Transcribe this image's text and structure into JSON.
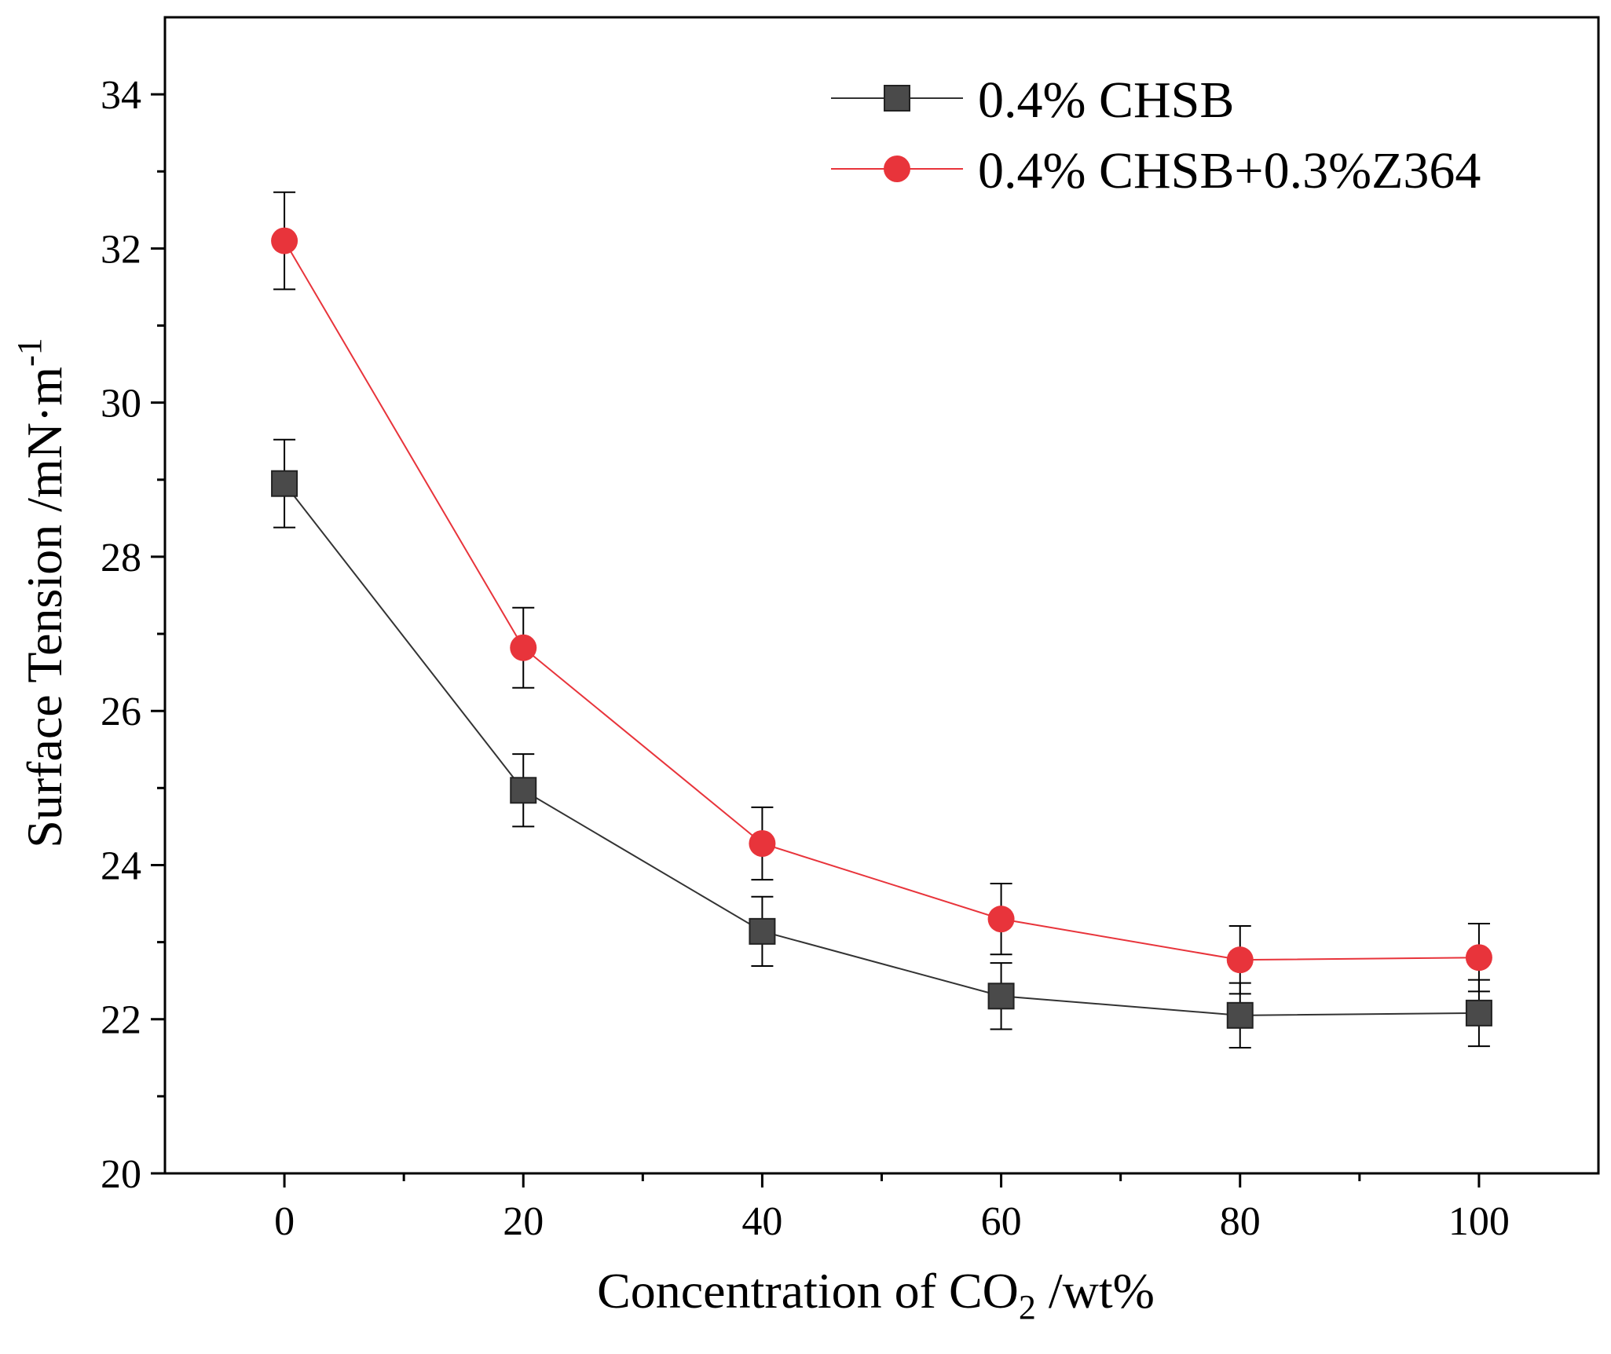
{
  "chart_data": {
    "type": "line",
    "xlabel_main": "Concentration of CO",
    "xlabel_sub": "2",
    "xlabel_rest": " /wt%",
    "ylabel_main": "Surface Tension /mN·m",
    "ylabel_sup": "-1",
    "xlim": [
      -10,
      110
    ],
    "ylim": [
      20,
      35
    ],
    "x_ticks": [
      0,
      20,
      40,
      60,
      80,
      100
    ],
    "x_minor_ticks": [
      10,
      30,
      50,
      70,
      90
    ],
    "y_ticks": [
      20,
      22,
      24,
      26,
      28,
      30,
      32,
      34
    ],
    "y_minor_ticks": [
      21,
      23,
      25,
      27,
      29,
      31,
      33
    ],
    "x_tick_labels": [
      "0",
      "20",
      "40",
      "60",
      "80",
      "100"
    ],
    "y_tick_labels": [
      "20",
      "22",
      "24",
      "26",
      "28",
      "30",
      "32",
      "34"
    ],
    "legend_position": "top-right",
    "series": [
      {
        "name": "0.4% CHSB",
        "marker": "square",
        "color": "#4a4a4a",
        "line_color": "#333333",
        "x": [
          0,
          20,
          40,
          60,
          80,
          100
        ],
        "values": [
          28.95,
          24.97,
          23.14,
          22.3,
          22.05,
          22.08
        ],
        "errors": [
          0.57,
          0.47,
          0.45,
          0.43,
          0.42,
          0.43
        ]
      },
      {
        "name": "0.4% CHSB+0.3%Z364",
        "marker": "circle",
        "color": "#e8343b",
        "line_color": "#e8343b",
        "x": [
          0,
          20,
          40,
          60,
          80,
          100
        ],
        "values": [
          32.1,
          26.82,
          24.28,
          23.3,
          22.77,
          22.8
        ],
        "errors": [
          0.63,
          0.52,
          0.47,
          0.46,
          0.44,
          0.44
        ]
      }
    ]
  }
}
